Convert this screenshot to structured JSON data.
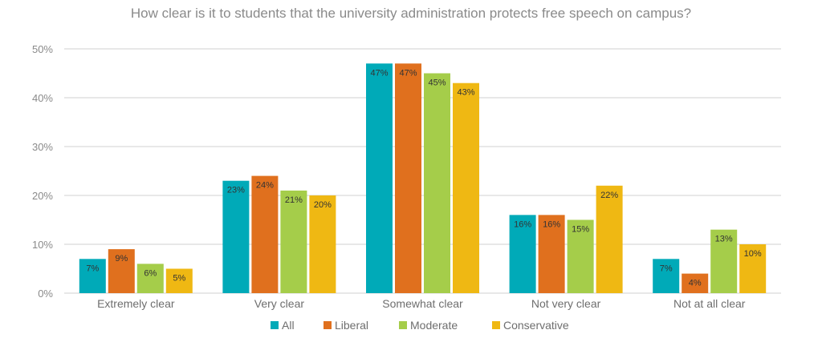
{
  "chart_data": {
    "type": "bar",
    "title": "How clear is it to students that the university administration protects free speech on campus?",
    "categories": [
      "Extremely clear",
      "Very clear",
      "Somewhat clear",
      "Not very clear",
      "Not at all clear"
    ],
    "series": [
      {
        "name": "All",
        "color": "#00aab8",
        "values": [
          7,
          23,
          47,
          16,
          7
        ]
      },
      {
        "name": "Liberal",
        "color": "#e0701e",
        "values": [
          9,
          24,
          47,
          16,
          4
        ]
      },
      {
        "name": "Moderate",
        "color": "#a5cd4a",
        "values": [
          6,
          21,
          45,
          15,
          13
        ]
      },
      {
        "name": "Conservative",
        "color": "#efb813",
        "values": [
          5,
          20,
          43,
          22,
          10
        ]
      }
    ],
    "ylim": [
      0,
      50
    ],
    "yticks": [
      "0%",
      "10%",
      "20%",
      "30%",
      "40%",
      "50%"
    ],
    "grid": true,
    "legend": "bottom",
    "value_format": "percent"
  }
}
